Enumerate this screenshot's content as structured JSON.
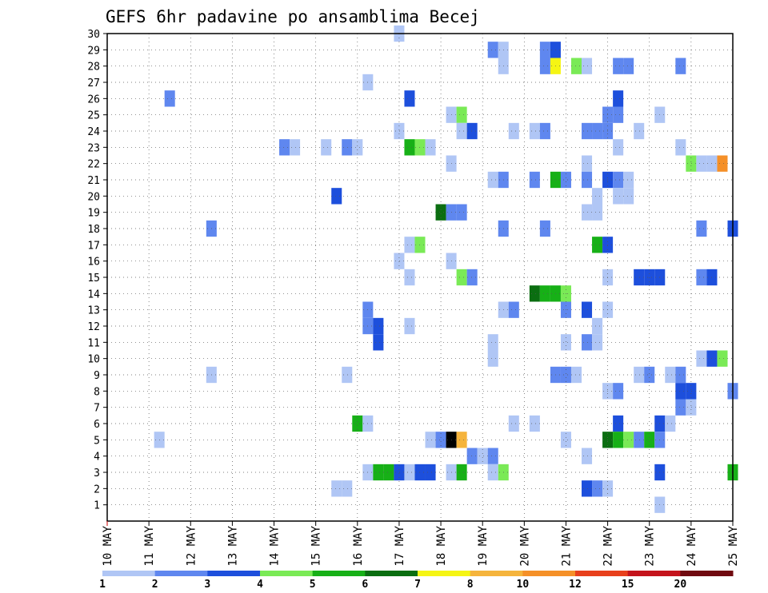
{
  "chart_data": {
    "type": "heatmap",
    "title": "GEFS 6hr padavine po ansamblima Becej",
    "xlabel": "",
    "ylabel": "",
    "x_ticks": [
      "10 MAY",
      "11 MAY",
      "12 MAY",
      "13 MAY",
      "14 MAY",
      "15 MAY",
      "16 MAY",
      "17 MAY",
      "18 MAY",
      "19 MAY",
      "20 MAY",
      "21 MAY",
      "22 MAY",
      "23 MAY",
      "24 MAY",
      "25 MAY"
    ],
    "y_ticks": [
      "1",
      "2",
      "3",
      "4",
      "5",
      "6",
      "7",
      "8",
      "9",
      "10",
      "11",
      "12",
      "13",
      "14",
      "15",
      "16",
      "17",
      "18",
      "19",
      "20",
      "21",
      "22",
      "23",
      "24",
      "25",
      "26",
      "27",
      "28",
      "29",
      "30"
    ],
    "xlim_steps": [
      0,
      60
    ],
    "ylim": [
      0,
      30
    ],
    "grid": true,
    "legend": {
      "position": "bottom",
      "labels": [
        "1",
        "2",
        "3",
        "4",
        "5",
        "6",
        "7",
        "8",
        "10",
        "12",
        "15",
        "20"
      ],
      "colors": [
        "#b0c6f5",
        "#5f87ef",
        "#1d4fdc",
        "#7aea56",
        "#17b017",
        "#0b6e11",
        "#f5f514",
        "#f5b43c",
        "#f59028",
        "#e8401c",
        "#c4141c",
        "#700a10"
      ]
    },
    "cells": [
      [
        30,
        28,
        1
      ],
      [
        29,
        37,
        2
      ],
      [
        29,
        38,
        1
      ],
      [
        29,
        42,
        2
      ],
      [
        29,
        43,
        3
      ],
      [
        28,
        38,
        1
      ],
      [
        28,
        42,
        2
      ],
      [
        28,
        43,
        7
      ],
      [
        28,
        45,
        4
      ],
      [
        28,
        46,
        1
      ],
      [
        28,
        49,
        2
      ],
      [
        28,
        50,
        2
      ],
      [
        28,
        55,
        2
      ],
      [
        27,
        25,
        1
      ],
      [
        26,
        6,
        2
      ],
      [
        26,
        29,
        3
      ],
      [
        26,
        49,
        3
      ],
      [
        25,
        33,
        1
      ],
      [
        25,
        34,
        4
      ],
      [
        25,
        48,
        2
      ],
      [
        25,
        49,
        2
      ],
      [
        25,
        53,
        1
      ],
      [
        24,
        28,
        1
      ],
      [
        24,
        34,
        1
      ],
      [
        24,
        35,
        3
      ],
      [
        24,
        39,
        1
      ],
      [
        24,
        41,
        1
      ],
      [
        24,
        42,
        2
      ],
      [
        24,
        46,
        2
      ],
      [
        24,
        47,
        2
      ],
      [
        24,
        48,
        2
      ],
      [
        24,
        51,
        1
      ],
      [
        23,
        17,
        2
      ],
      [
        23,
        18,
        1
      ],
      [
        23,
        21,
        1
      ],
      [
        23,
        23,
        2
      ],
      [
        23,
        24,
        1
      ],
      [
        23,
        29,
        5
      ],
      [
        23,
        30,
        4
      ],
      [
        23,
        31,
        1
      ],
      [
        23,
        49,
        1
      ],
      [
        23,
        55,
        1
      ],
      [
        22,
        33,
        1
      ],
      [
        22,
        46,
        1
      ],
      [
        22,
        56,
        4
      ],
      [
        22,
        57,
        1
      ],
      [
        22,
        58,
        1
      ],
      [
        22,
        59,
        9
      ],
      [
        21,
        37,
        1
      ],
      [
        21,
        38,
        2
      ],
      [
        21,
        41,
        2
      ],
      [
        21,
        43,
        5
      ],
      [
        21,
        44,
        2
      ],
      [
        21,
        46,
        2
      ],
      [
        21,
        48,
        3
      ],
      [
        21,
        49,
        2
      ],
      [
        21,
        50,
        1
      ],
      [
        20,
        22,
        3
      ],
      [
        20,
        47,
        1
      ],
      [
        20,
        49,
        1
      ],
      [
        20,
        50,
        1
      ],
      [
        19,
        32,
        6
      ],
      [
        19,
        33,
        2
      ],
      [
        19,
        34,
        2
      ],
      [
        19,
        46,
        1
      ],
      [
        19,
        47,
        1
      ],
      [
        18,
        10,
        2
      ],
      [
        18,
        38,
        2
      ],
      [
        18,
        42,
        2
      ],
      [
        18,
        57,
        2
      ],
      [
        18,
        60,
        3
      ],
      [
        17,
        29,
        1
      ],
      [
        17,
        30,
        4
      ],
      [
        17,
        47,
        5
      ],
      [
        17,
        48,
        3
      ],
      [
        16,
        28,
        1
      ],
      [
        16,
        33,
        1
      ],
      [
        15,
        29,
        1
      ],
      [
        15,
        34,
        4
      ],
      [
        15,
        35,
        2
      ],
      [
        15,
        48,
        1
      ],
      [
        15,
        51,
        3
      ],
      [
        15,
        52,
        3
      ],
      [
        15,
        53,
        3
      ],
      [
        15,
        57,
        2
      ],
      [
        15,
        58,
        3
      ],
      [
        14,
        41,
        6
      ],
      [
        14,
        42,
        5
      ],
      [
        14,
        43,
        5
      ],
      [
        14,
        44,
        4
      ],
      [
        13,
        25,
        2
      ],
      [
        13,
        38,
        1
      ],
      [
        13,
        39,
        2
      ],
      [
        13,
        44,
        2
      ],
      [
        13,
        46,
        3
      ],
      [
        13,
        48,
        1
      ],
      [
        12,
        25,
        2
      ],
      [
        12,
        26,
        3
      ],
      [
        12,
        29,
        1
      ],
      [
        12,
        47,
        1
      ],
      [
        11,
        26,
        3
      ],
      [
        11,
        37,
        1
      ],
      [
        11,
        44,
        1
      ],
      [
        11,
        46,
        2
      ],
      [
        11,
        47,
        1
      ],
      [
        10,
        37,
        1
      ],
      [
        10,
        57,
        1
      ],
      [
        10,
        58,
        3
      ],
      [
        10,
        59,
        4
      ],
      [
        9,
        23,
        1
      ],
      [
        9,
        10,
        1
      ],
      [
        9,
        43,
        2
      ],
      [
        9,
        44,
        2
      ],
      [
        9,
        45,
        1
      ],
      [
        9,
        51,
        1
      ],
      [
        9,
        52,
        2
      ],
      [
        9,
        54,
        1
      ],
      [
        9,
        55,
        2
      ],
      [
        8,
        48,
        1
      ],
      [
        8,
        49,
        2
      ],
      [
        8,
        55,
        3
      ],
      [
        8,
        56,
        3
      ],
      [
        8,
        60,
        2
      ],
      [
        7,
        55,
        2
      ],
      [
        7,
        56,
        1
      ],
      [
        6,
        24,
        5
      ],
      [
        6,
        25,
        1
      ],
      [
        6,
        39,
        1
      ],
      [
        6,
        41,
        1
      ],
      [
        6,
        49,
        3
      ],
      [
        6,
        53,
        3
      ],
      [
        6,
        54,
        1
      ],
      [
        5,
        5,
        1
      ],
      [
        5,
        31,
        1
      ],
      [
        5,
        32,
        2
      ],
      [
        5,
        33,
        13
      ],
      [
        5,
        34,
        8
      ],
      [
        5,
        44,
        1
      ],
      [
        5,
        48,
        6
      ],
      [
        5,
        49,
        5
      ],
      [
        5,
        50,
        4
      ],
      [
        5,
        51,
        2
      ],
      [
        5,
        52,
        5
      ],
      [
        5,
        53,
        2
      ],
      [
        4,
        35,
        2
      ],
      [
        4,
        36,
        1
      ],
      [
        4,
        37,
        2
      ],
      [
        4,
        46,
        1
      ],
      [
        3,
        25,
        1
      ],
      [
        3,
        26,
        5
      ],
      [
        3,
        27,
        5
      ],
      [
        3,
        28,
        3
      ],
      [
        3,
        29,
        1
      ],
      [
        3,
        30,
        3
      ],
      [
        3,
        31,
        3
      ],
      [
        3,
        33,
        1
      ],
      [
        3,
        34,
        5
      ],
      [
        3,
        37,
        1
      ],
      [
        3,
        38,
        4
      ],
      [
        3,
        53,
        3
      ],
      [
        3,
        60,
        5
      ],
      [
        2,
        22,
        1
      ],
      [
        2,
        23,
        1
      ],
      [
        2,
        46,
        3
      ],
      [
        2,
        47,
        2
      ],
      [
        2,
        48,
        1
      ],
      [
        1,
        53,
        1
      ]
    ]
  }
}
